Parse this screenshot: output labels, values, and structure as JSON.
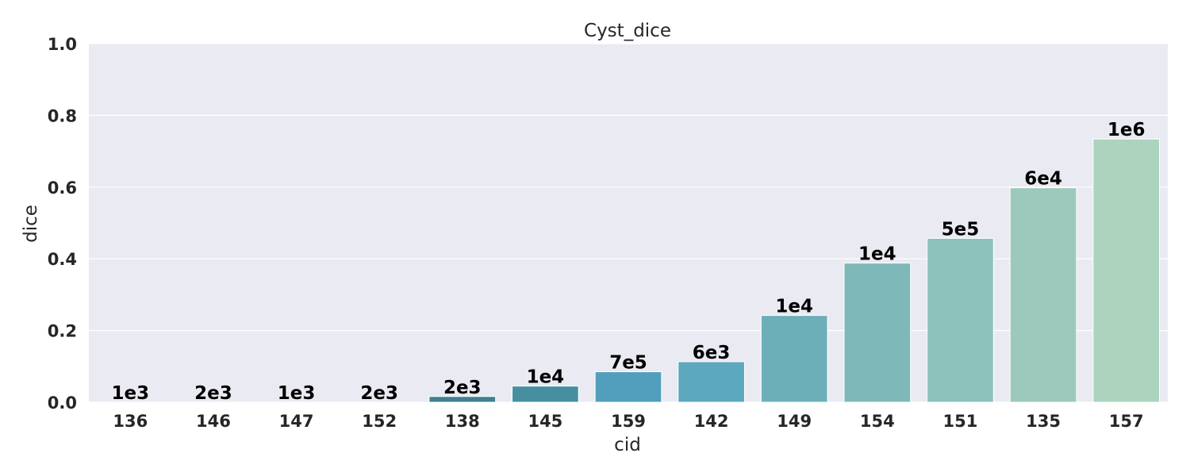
{
  "chart_data": {
    "type": "bar",
    "title": "Cyst_dice",
    "xlabel": "cid",
    "ylabel": "dice",
    "ylim": [
      0,
      1.0
    ],
    "yticks": [
      "0.0",
      "0.2",
      "0.4",
      "0.6",
      "0.8",
      "1.0"
    ],
    "grid": true,
    "categories": [
      "136",
      "146",
      "147",
      "152",
      "138",
      "145",
      "159",
      "142",
      "149",
      "154",
      "151",
      "135",
      "157"
    ],
    "values": [
      0.0,
      0.0,
      0.0,
      0.0,
      0.016,
      0.045,
      0.085,
      0.113,
      0.242,
      0.388,
      0.457,
      0.598,
      0.734
    ],
    "bar_labels": [
      "1e3",
      "2e3",
      "1e3",
      "2e3",
      "2e3",
      "1e4",
      "7e5",
      "6e3",
      "1e4",
      "1e4",
      "5e5",
      "6e4",
      "1e6"
    ],
    "colors": [
      "#3a4a5e",
      "#3b5569",
      "#3d6075",
      "#3f6d80",
      "#40808f",
      "#468fa1",
      "#519fbd",
      "#5ca8bf",
      "#6dafb8",
      "#7eb8b9",
      "#8cc2bb",
      "#9cc9bb",
      "#abd3bd"
    ],
    "background": "#eaeaf2"
  }
}
